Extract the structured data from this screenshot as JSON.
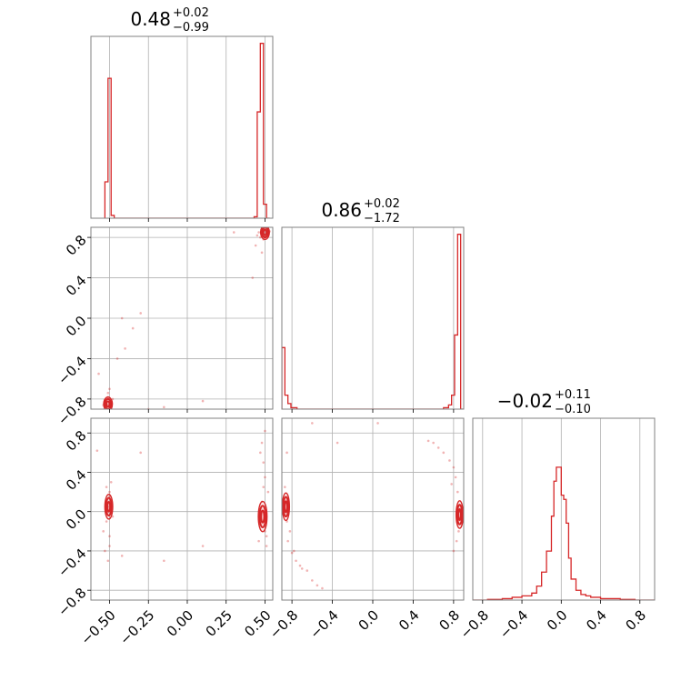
{
  "chart_data": {
    "type": "corner",
    "color": "#d62728",
    "grid": true,
    "titles": [
      {
        "main": "0.48",
        "plus": "+0.02",
        "minus": "−0.99"
      },
      {
        "main": "0.86",
        "plus": "+0.02",
        "minus": "−1.72"
      },
      {
        "main": "−0.02",
        "plus": "+0.11",
        "minus": "−0.10"
      }
    ],
    "ranges": [
      [
        -0.62,
        0.55
      ],
      [
        -0.9,
        0.9
      ],
      [
        -0.9,
        0.95
      ]
    ],
    "ticks": [
      {
        "values": [
          -0.5,
          -0.25,
          0.0,
          0.25,
          0.5
        ],
        "labels": [
          "−0.50",
          "−0.25",
          "0.00",
          "0.25",
          "0.50"
        ]
      },
      {
        "values": [
          -0.8,
          -0.4,
          0.0,
          0.4,
          0.8
        ],
        "labels": [
          "−0.8",
          "−0.4",
          "0.0",
          "0.4",
          "0.8"
        ]
      },
      {
        "values": [
          -0.8,
          -0.4,
          0.0,
          0.4,
          0.8
        ],
        "labels": [
          "−0.8",
          "−0.4",
          "0.0",
          "0.4",
          "0.8"
        ]
      }
    ],
    "histograms": [
      {
        "edges": [
          -0.53,
          -0.51,
          -0.49,
          -0.47,
          -0.45,
          0.43,
          0.45,
          0.47,
          0.49,
          0.51,
          0.53
        ],
        "counts": [
          0.26,
          1.0,
          0.02,
          0.0,
          0.0,
          0.01,
          0.76,
          1.25,
          0.1,
          0.0
        ]
      },
      {
        "edges": [
          -0.9,
          -0.87,
          -0.84,
          -0.81,
          -0.78,
          -0.75,
          -0.7,
          0.7,
          0.75,
          0.78,
          0.81,
          0.84,
          0.87,
          0.9
        ],
        "counts": [
          0.44,
          0.1,
          0.04,
          0.01,
          0.01,
          0.0,
          0.0,
          0.01,
          0.03,
          0.1,
          0.53,
          1.25,
          0.0
        ]
      },
      {
        "edges": [
          -0.9,
          -0.75,
          -0.6,
          -0.5,
          -0.4,
          -0.3,
          -0.25,
          -0.2,
          -0.15,
          -0.1,
          -0.075,
          -0.05,
          -0.025,
          0.0,
          0.025,
          0.05,
          0.075,
          0.1,
          0.15,
          0.2,
          0.25,
          0.3,
          0.4,
          0.5,
          0.6,
          0.75,
          0.95
        ],
        "counts": [
          0.0,
          0.005,
          0.01,
          0.02,
          0.03,
          0.05,
          0.1,
          0.2,
          0.35,
          0.6,
          0.85,
          0.95,
          0.95,
          0.75,
          0.72,
          0.55,
          0.3,
          0.15,
          0.07,
          0.04,
          0.03,
          0.02,
          0.01,
          0.01,
          0.005,
          0.0
        ]
      }
    ],
    "pairs": [
      {
        "row": 1,
        "col": 0,
        "points": [
          [
            0.48,
            0.86
          ],
          [
            0.5,
            0.82
          ],
          [
            0.49,
            0.88
          ],
          [
            0.51,
            0.84
          ],
          [
            0.47,
            0.8
          ],
          [
            0.52,
            0.83
          ],
          [
            0.5,
            0.87
          ],
          [
            0.46,
            0.85
          ],
          [
            0.49,
            0.78
          ],
          [
            0.53,
            0.86
          ],
          [
            0.45,
            0.82
          ],
          [
            0.5,
            0.9
          ],
          [
            0.44,
            0.72
          ],
          [
            0.42,
            0.4
          ],
          [
            0.48,
            0.65
          ],
          [
            -0.51,
            -0.86
          ],
          [
            -0.5,
            -0.84
          ],
          [
            -0.52,
            -0.88
          ],
          [
            -0.49,
            -0.82
          ],
          [
            -0.53,
            -0.85
          ],
          [
            -0.5,
            -0.87
          ],
          [
            -0.48,
            -0.8
          ],
          [
            -0.51,
            -0.78
          ],
          [
            -0.52,
            -0.83
          ],
          [
            -0.5,
            -0.88
          ],
          [
            -0.54,
            -0.86
          ],
          [
            -0.49,
            -0.89
          ],
          [
            -0.53,
            -0.81
          ],
          [
            -0.51,
            -0.74
          ],
          [
            -0.5,
            -0.7
          ],
          [
            -0.57,
            -0.55
          ],
          [
            -0.45,
            -0.4
          ],
          [
            -0.3,
            0.05
          ],
          [
            -0.35,
            -0.1
          ],
          [
            -0.4,
            -0.3
          ],
          [
            -0.25,
            -0.9
          ],
          [
            -0.15,
            -0.88
          ],
          [
            0.1,
            -0.82
          ],
          [
            -0.42,
            0.0
          ],
          [
            0.3,
            0.85
          ]
        ],
        "blobs": [
          [
            0.5,
            0.85,
            0.02,
            0.05
          ],
          [
            -0.51,
            -0.85,
            0.02,
            0.05
          ]
        ]
      },
      {
        "row": 2,
        "col": 0,
        "points": [
          [
            -0.5,
            0.2
          ],
          [
            -0.51,
            0.05
          ],
          [
            -0.52,
            -0.1
          ],
          [
            -0.5,
            -0.25
          ],
          [
            -0.49,
            0.3
          ],
          [
            -0.53,
            -0.4
          ],
          [
            -0.51,
            -0.5
          ],
          [
            -0.5,
            0.15
          ],
          [
            -0.52,
            0.25
          ],
          [
            -0.48,
            -0.05
          ],
          [
            -0.54,
            -0.2
          ],
          [
            -0.5,
            -0.35
          ],
          [
            -0.51,
            0.0
          ],
          [
            0.48,
            0.1
          ],
          [
            0.5,
            -0.1
          ],
          [
            0.49,
            0.25
          ],
          [
            0.51,
            -0.25
          ],
          [
            0.47,
            0.0
          ],
          [
            0.52,
            0.2
          ],
          [
            0.5,
            -0.2
          ],
          [
            0.49,
            0.5
          ],
          [
            0.48,
            0.7
          ],
          [
            0.51,
            -0.35
          ],
          [
            0.5,
            0.35
          ],
          [
            0.47,
            0.6
          ],
          [
            0.5,
            0.82
          ],
          [
            0.46,
            -0.3
          ],
          [
            -0.58,
            0.62
          ],
          [
            -0.42,
            -0.45
          ],
          [
            -0.15,
            -0.5
          ],
          [
            -0.3,
            0.6
          ],
          [
            0.1,
            -0.35
          ]
        ],
        "blobs": [
          [
            -0.505,
            0.05,
            0.018,
            0.09
          ],
          [
            0.485,
            -0.05,
            0.02,
            0.11
          ]
        ]
      },
      {
        "row": 2,
        "col": 1,
        "points": [
          [
            -0.86,
            0.1
          ],
          [
            -0.85,
            -0.1
          ],
          [
            -0.84,
            -0.3
          ],
          [
            -0.8,
            -0.42
          ],
          [
            -0.76,
            -0.5
          ],
          [
            -0.72,
            -0.55
          ],
          [
            -0.65,
            -0.6
          ],
          [
            -0.6,
            -0.7
          ],
          [
            -0.55,
            -0.75
          ],
          [
            -0.5,
            -0.78
          ],
          [
            -0.82,
            -0.2
          ],
          [
            -0.87,
            0.25
          ],
          [
            -0.78,
            -0.4
          ],
          [
            -0.7,
            -0.58
          ],
          [
            0.86,
            0.0
          ],
          [
            0.84,
            0.2
          ],
          [
            0.82,
            0.35
          ],
          [
            0.8,
            0.45
          ],
          [
            0.76,
            0.52
          ],
          [
            0.7,
            0.6
          ],
          [
            0.65,
            0.65
          ],
          [
            0.6,
            0.7
          ],
          [
            0.55,
            0.72
          ],
          [
            0.85,
            -0.2
          ],
          [
            0.83,
            -0.3
          ],
          [
            0.8,
            -0.4
          ],
          [
            0.78,
            0.28
          ],
          [
            -0.35,
            0.7
          ],
          [
            0.05,
            0.9
          ],
          [
            -0.6,
            0.9
          ],
          [
            -0.85,
            0.6
          ]
        ],
        "blobs": [
          [
            -0.86,
            0.05,
            0.025,
            0.1
          ],
          [
            0.86,
            -0.03,
            0.025,
            0.1
          ]
        ]
      }
    ]
  }
}
